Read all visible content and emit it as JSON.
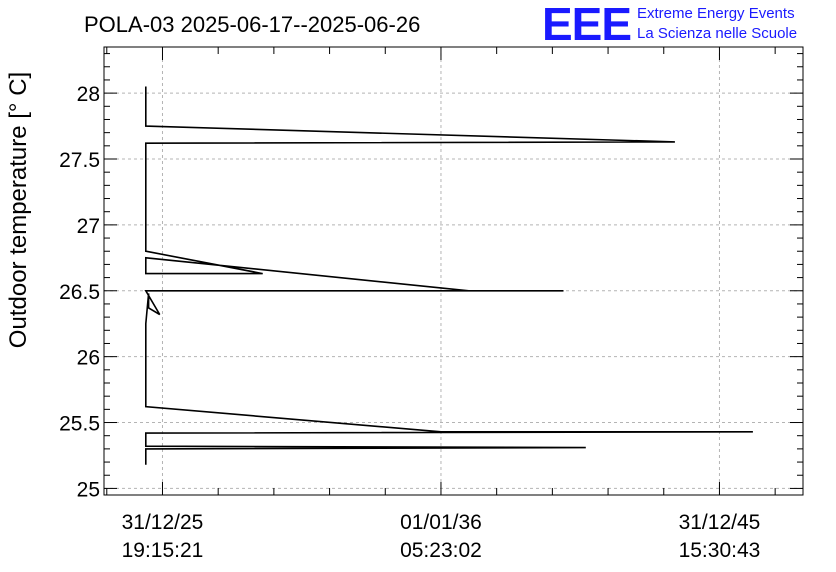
{
  "chart_data": {
    "type": "line",
    "title": "POLA-03 2025-06-17--2025-06-26",
    "ylabel": "Outdoor temperature [° C]",
    "xlabel": "",
    "ylim": [
      24.95,
      28.35
    ],
    "xlim": [
      -1.05,
      11.5
    ],
    "yticks": [
      "25",
      "25.5",
      "26",
      "26.5",
      "27",
      "27.5",
      "28"
    ],
    "yminor_step": 0.1,
    "xticks": [
      {
        "x": 0,
        "line1": "31/12/25",
        "line2": "19:15:21"
      },
      {
        "x": 5,
        "line1": "01/01/36",
        "line2": "05:23:02"
      },
      {
        "x": 10,
        "line1": "31/12/45",
        "line2": "15:30:43"
      }
    ],
    "xminor_step": 1,
    "grid": true,
    "series": [
      {
        "x": [
          -0.3,
          -0.3,
          9.2,
          -0.3,
          -0.3,
          1.8,
          -0.3,
          -0.3,
          5.5,
          7.2,
          -0.3,
          -0.05,
          -0.25,
          -0.25,
          -0.3,
          -0.3,
          5.0,
          10.6,
          -0.3,
          -0.3,
          7.6,
          -0.3,
          -0.3
        ],
        "y": [
          28.05,
          27.75,
          27.63,
          27.62,
          26.8,
          26.63,
          26.63,
          26.75,
          26.5,
          26.5,
          26.5,
          26.32,
          26.37,
          26.48,
          26.25,
          25.62,
          25.43,
          25.43,
          25.42,
          25.32,
          25.31,
          25.3,
          25.18
        ]
      }
    ]
  },
  "brand": {
    "logo_text": "EEE",
    "line1": "Extreme Energy Events",
    "line2": "La Scienza nelle Scuole"
  }
}
